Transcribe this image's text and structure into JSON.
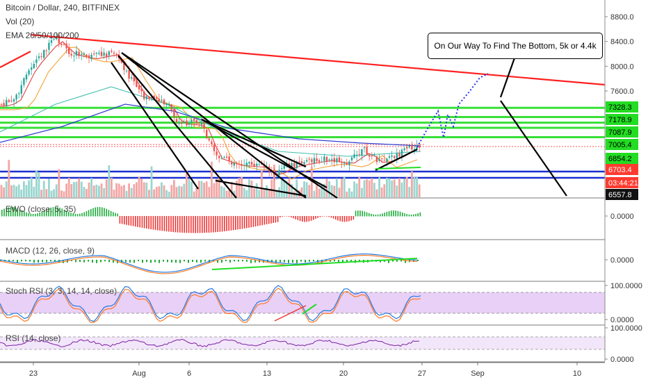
{
  "chart_data": {
    "type": "candlestick",
    "header": {
      "symbol": "Bitcoin / Dollar, 240, BITFINEX",
      "volume_label": "Vol (20)",
      "ema_label": "EMA 20/50/100/200"
    },
    "price_axis": {
      "ticks": [
        "8800.0",
        "8400.0",
        "8000.0",
        "7600.0"
      ],
      "tick_values": [
        8800,
        8400,
        8000,
        7600
      ],
      "levels": [
        {
          "label": "7328.3",
          "value": 7328.3,
          "color": "#00ee00"
        },
        {
          "label": "7178.9",
          "value": 7178.9,
          "color": "#00ee00"
        },
        {
          "label": "7087.9",
          "value": 7087.9,
          "color": "#00ee00"
        },
        {
          "label": "7005.4",
          "value": 7005.4,
          "color": "#00ee00"
        },
        {
          "label": "6854.2",
          "value": 6854.2,
          "color": "#00ee00"
        },
        {
          "label": "6703.4",
          "value": 6703.4,
          "color": "#ff3b30"
        },
        {
          "label": "03:44:21",
          "value": null,
          "color": "#ff3b30"
        },
        {
          "label": "6557.8",
          "value": 6557.8,
          "color": "#111111"
        }
      ]
    },
    "x_axis": {
      "labels": [
        "23",
        "Aug",
        "6",
        "13",
        "20",
        "27",
        "Sep",
        "10"
      ]
    },
    "annotation": "On Our Way To Find The Bottom, 5k or 4.4k",
    "indicators": [
      {
        "label": "EWO (close, 5, 35)",
        "ticks": [
          "0.0000"
        ]
      },
      {
        "label": "MACD (12, 26, close, 9)",
        "ticks": [
          "0.0000"
        ]
      },
      {
        "label": "Stoch RSI (3, 3, 14, 14, close)",
        "ticks": [
          "100.0000",
          "0.0000"
        ]
      },
      {
        "label": "RSI (14, close)",
        "ticks": [
          "100.0000",
          "0.0000"
        ]
      }
    ],
    "colors": {
      "support": "#00ee00",
      "trendline": "#ff2020",
      "bull": "#26a69a",
      "bear": "#ef5350",
      "stoch_fill": "#e9d0f7"
    }
  }
}
